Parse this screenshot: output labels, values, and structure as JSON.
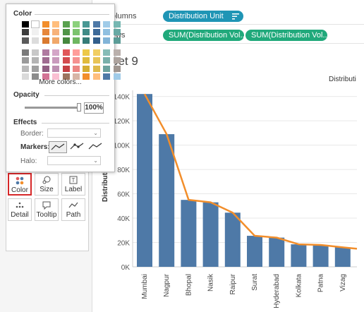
{
  "shelves": {
    "columns_label": "olumns",
    "rows_label": "ows",
    "columns_pill": "Distribution Unit",
    "rows_pills": [
      "SUM(Distribution Vol..",
      "SUM(Distribution Vol.."
    ]
  },
  "sheet": {
    "title": "eet 9",
    "column_header": "Distributi",
    "y_axis_label": "Distribution"
  },
  "marks": {
    "buttons": [
      "Color",
      "Size",
      "Label",
      "Detail",
      "Tooltip",
      "Path"
    ]
  },
  "color_popup": {
    "title": "Color",
    "more_colors": "More colors...",
    "opacity_title": "Opacity",
    "opacity_value": "100%",
    "opacity_fraction": 1.0,
    "effects_title": "Effects",
    "border_label": "Border:",
    "markers_label": "Markers:",
    "halo_label": "Halo:"
  },
  "colors": {
    "bar": "#4e79a7",
    "line": "#f28e2b",
    "pill_green": "#20a97b",
    "pill_blue": "#1f95b5",
    "highlight": "#d62728"
  },
  "chart_data": {
    "type": "bar",
    "categories": [
      "Mumbai",
      "Nagpur",
      "Bhopal",
      "Nasik",
      "Raipur",
      "Surat",
      "Hyderabad",
      "Kolkata",
      "Patna",
      "Vizag"
    ],
    "series": [
      {
        "values": [
          142000,
          109000,
          55000,
          53000,
          44500,
          25500,
          24000,
          18500,
          18000,
          16000
        ]
      },
      {
        "values": [
          142000,
          109000,
          55000,
          53000,
          44500,
          25500,
          24000,
          18500,
          18000,
          16000
        ]
      }
    ],
    "y_ticks": [
      "0K",
      "20K",
      "40K",
      "60K",
      "80K",
      "100K",
      "120K",
      "140K"
    ],
    "ylim": [
      0,
      145000
    ],
    "ylabel": "Distribution",
    "grid": true
  }
}
